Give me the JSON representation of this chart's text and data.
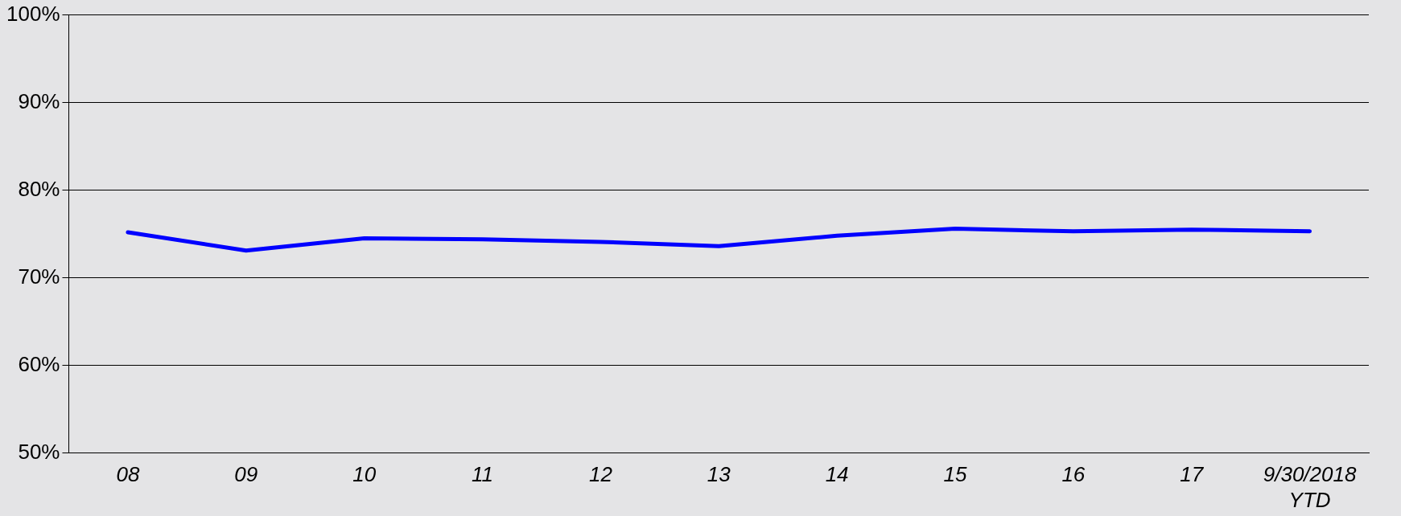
{
  "chart_data": {
    "type": "line",
    "categories": [
      "08",
      "09",
      "10",
      "11",
      "12",
      "13",
      "14",
      "15",
      "16",
      "17",
      "9/30/2018\nYTD"
    ],
    "series": [
      {
        "color": "#0000ff",
        "values": [
          75.2,
          73.1,
          74.5,
          74.4,
          74.1,
          73.6,
          74.8,
          75.6,
          75.3,
          75.5,
          75.3
        ]
      }
    ],
    "ylim": [
      50,
      100
    ],
    "yticks": [
      {
        "value": 50,
        "label": "50%"
      },
      {
        "value": 60,
        "label": "60%"
      },
      {
        "value": 70,
        "label": "70%"
      },
      {
        "value": 80,
        "label": "80%"
      },
      {
        "value": 90,
        "label": "90%"
      },
      {
        "value": 100,
        "label": "100%"
      }
    ],
    "grid": "y",
    "marker": "none",
    "line_style": "solid",
    "legend": false
  }
}
